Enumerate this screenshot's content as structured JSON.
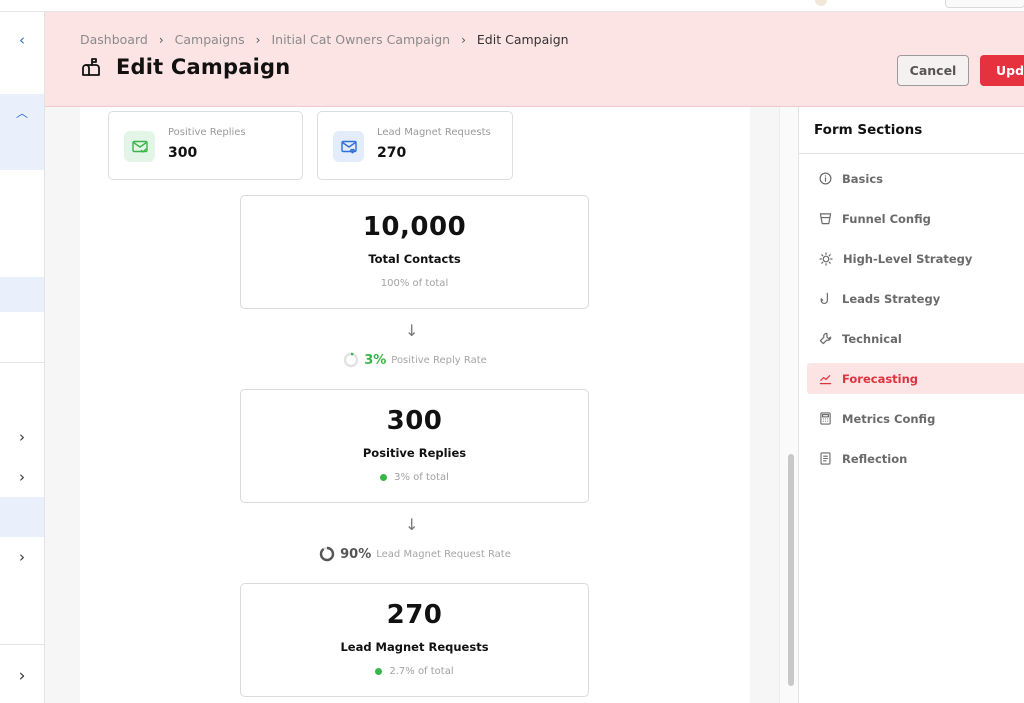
{
  "breadcrumb": [
    "Dashboard",
    "Campaigns",
    "Initial Cat Owners Campaign",
    "Edit Campaign"
  ],
  "header": {
    "title": "Edit Campaign",
    "cancel_label": "Cancel",
    "update_label": "Upda"
  },
  "stats": [
    {
      "label": "Positive Replies",
      "value": "300",
      "icon": "mail-check-icon"
    },
    {
      "label": "Lead Magnet Requests",
      "value": "270",
      "icon": "mail-heart-icon"
    }
  ],
  "funnel": [
    {
      "value": "10,000",
      "label": "Total Contacts",
      "sub": "100% of total"
    },
    {
      "value": "300",
      "label": "Positive Replies",
      "sub": "3% of total"
    },
    {
      "value": "270",
      "label": "Lead Magnet Requests",
      "sub": "2.7% of total"
    }
  ],
  "rates": [
    {
      "value": "3%",
      "label": "Positive Reply Rate",
      "fraction": 0.03,
      "color": "#3bb54a"
    },
    {
      "value": "90%",
      "label": "Lead Magnet Request Rate",
      "fraction": 0.9,
      "color": "#555555"
    }
  ],
  "form_sections": {
    "title": "Form Sections",
    "items": [
      {
        "label": "Basics",
        "icon": "info-icon"
      },
      {
        "label": "Funnel Config",
        "icon": "funnel-icon"
      },
      {
        "label": "High-Level Strategy",
        "icon": "lightbulb-icon"
      },
      {
        "label": "Leads Strategy",
        "icon": "fishhook-icon"
      },
      {
        "label": "Technical",
        "icon": "wrench-icon"
      },
      {
        "label": "Forecasting",
        "icon": "chart-line-icon",
        "active": true
      },
      {
        "label": "Metrics Config",
        "icon": "calculator-icon"
      },
      {
        "label": "Reflection",
        "icon": "document-icon"
      }
    ]
  },
  "colors": {
    "accent": "#e5323e",
    "header_bg": "#fde4e4",
    "success": "#3bb54a"
  }
}
